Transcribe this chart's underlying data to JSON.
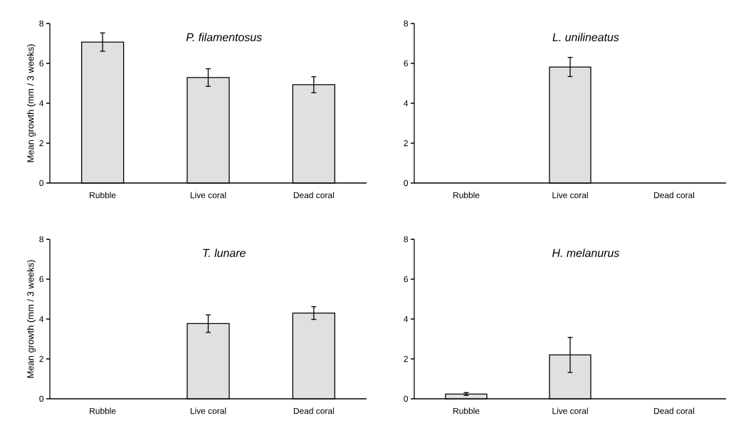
{
  "chart_data": [
    {
      "type": "bar",
      "title": "P. filamentosus",
      "ylabel": "Mean growth (mm / 3 weeks)",
      "categories": [
        "Rubble",
        "Live coral",
        "Dead coral"
      ],
      "values": [
        7.07,
        5.29,
        4.93
      ],
      "errors": [
        0.46,
        0.44,
        0.4
      ],
      "color": "#e0e0e2",
      "ylim": [
        0,
        8
      ],
      "yticks": [
        0,
        2,
        4,
        6,
        8
      ]
    },
    {
      "type": "bar",
      "title": "L. unilineatus",
      "categories": [
        "Rubble",
        "Live coral",
        "Dead coral"
      ],
      "values": [
        null,
        5.82,
        null
      ],
      "errors": [
        null,
        0.48,
        null
      ],
      "color": "#e0e0e2",
      "ylim": [
        0,
        8
      ],
      "yticks": [
        0,
        2,
        4,
        6,
        8
      ]
    },
    {
      "type": "bar",
      "title": "T. lunare",
      "ylabel": "Mean growth (mm / 3 weeks)",
      "categories": [
        "Rubble",
        "Live coral",
        "Dead coral"
      ],
      "values": [
        null,
        3.77,
        4.3
      ],
      "errors": [
        null,
        0.44,
        0.32
      ],
      "color": "#e0e0e2",
      "ylim": [
        0,
        8
      ],
      "yticks": [
        0,
        2,
        4,
        6,
        8
      ]
    },
    {
      "type": "bar",
      "title": "H. melanurus",
      "categories": [
        "Rubble",
        "Live coral",
        "Dead coral"
      ],
      "values": [
        0.24,
        2.2,
        null
      ],
      "errors": [
        0.07,
        0.88,
        null
      ],
      "color": "#e0e0e2",
      "ylim": [
        0,
        8
      ],
      "yticks": [
        0,
        2,
        4,
        6,
        8
      ]
    }
  ]
}
